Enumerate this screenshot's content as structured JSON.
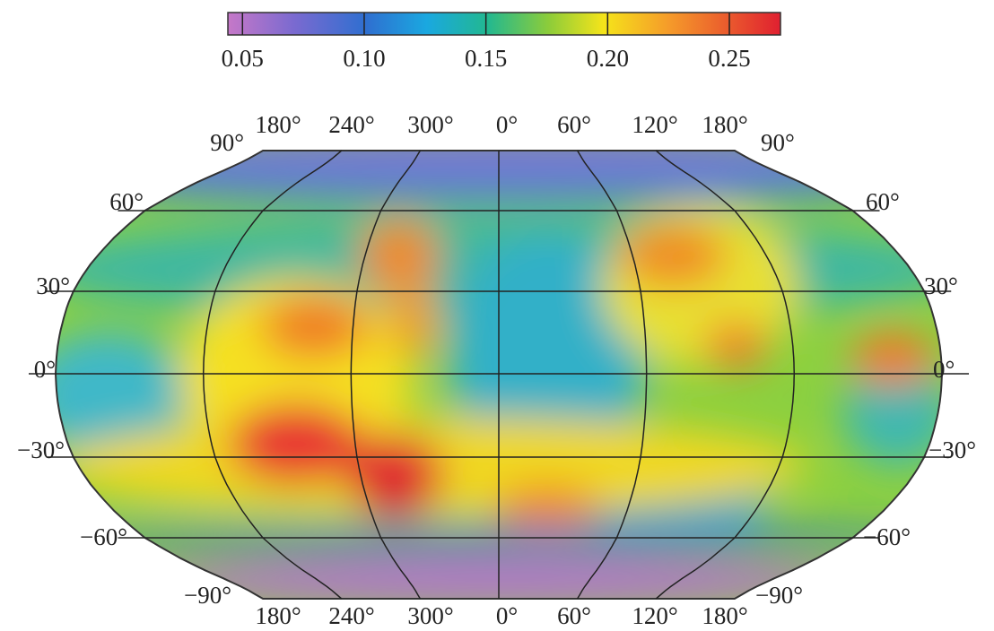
{
  "colorbar": {
    "lim": [
      0.044,
      0.271
    ],
    "ticks": [
      0.05,
      {
        "value": 0.1,
        "label": "0.10"
      },
      0.15,
      {
        "value": 0.2,
        "label": "0.20"
      },
      0.25
    ]
  },
  "map": {
    "longitude_labels_top": [
      "180°",
      "240°",
      "300°",
      "0°",
      "60°",
      "120°",
      "180°"
    ],
    "longitude_labels_bottom": [
      "180°",
      "240°",
      "300°",
      "0°",
      "60°",
      "120°",
      "180°"
    ],
    "latitude_labels_left": [
      "90°",
      "60°",
      "30°",
      "0°",
      "−30°",
      "−60°",
      "−90°"
    ],
    "latitude_labels_right": [
      "90°",
      "60°",
      "30°",
      "0°",
      "−30°",
      "−60°",
      "−90°"
    ]
  }
}
